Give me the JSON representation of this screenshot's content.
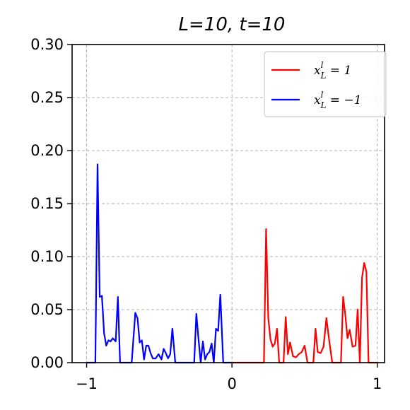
{
  "chart_data": {
    "type": "line",
    "title": "L=10, t=10",
    "xlabel": "",
    "ylabel": "",
    "xlim": [
      -1.1,
      1.05
    ],
    "ylim": [
      0,
      0.3
    ],
    "xticks": [
      -1,
      0,
      1
    ],
    "xtick_labels": [
      "−1",
      "0",
      "1"
    ],
    "yticks": [
      0.0,
      0.05,
      0.1,
      0.15,
      0.2,
      0.25,
      0.3
    ],
    "ytick_labels": [
      "0.00",
      "0.05",
      "0.10",
      "0.15",
      "0.20",
      "0.25",
      "0.30"
    ],
    "grid": true,
    "legend_position": "top-right",
    "series": [
      {
        "name": "x_L^l = 1",
        "legend_base": "x",
        "legend_sub": "L",
        "legend_sup": "l",
        "legend_rhs": " = 1",
        "color": "#ff0000",
        "x": [
          0.0,
          0.22,
          0.235,
          0.25,
          0.265,
          0.28,
          0.295,
          0.31,
          0.325,
          0.34,
          0.355,
          0.37,
          0.385,
          0.4,
          0.42,
          0.44,
          0.46,
          0.48,
          0.5,
          0.52,
          0.54,
          0.56,
          0.575,
          0.59,
          0.61,
          0.63,
          0.65,
          0.67,
          0.69,
          0.72,
          0.75,
          0.765,
          0.78,
          0.795,
          0.81,
          0.83,
          0.85,
          0.865,
          0.88,
          0.895,
          0.91,
          0.925,
          0.94,
          0.96,
          0.98,
          1.0
        ],
        "y": [
          0.0,
          0.0,
          0.126,
          0.042,
          0.022,
          0.015,
          0.018,
          0.032,
          0.0,
          0.0,
          0.0,
          0.043,
          0.008,
          0.019,
          0.006,
          0.005,
          0.008,
          0.01,
          0.016,
          0.0,
          0.0,
          0.0,
          0.032,
          0.01,
          0.009,
          0.015,
          0.042,
          0.02,
          0.0,
          0.0,
          0.0,
          0.062,
          0.045,
          0.023,
          0.031,
          0.015,
          0.016,
          0.05,
          0.0,
          0.08,
          0.094,
          0.086,
          0.0,
          0.0,
          0.0,
          0.0
        ]
      },
      {
        "name": "x_L^l = -1",
        "legend_base": "x",
        "legend_sub": "L",
        "legend_sup": "l",
        "legend_rhs": " = −1",
        "color": "#0000ff",
        "x": [
          -1.0,
          -0.94,
          -0.925,
          -0.91,
          -0.895,
          -0.88,
          -0.865,
          -0.85,
          -0.835,
          -0.82,
          -0.8,
          -0.785,
          -0.77,
          -0.75,
          -0.72,
          -0.69,
          -0.665,
          -0.65,
          -0.635,
          -0.62,
          -0.605,
          -0.59,
          -0.575,
          -0.56,
          -0.545,
          -0.525,
          -0.505,
          -0.485,
          -0.47,
          -0.455,
          -0.44,
          -0.425,
          -0.41,
          -0.39,
          -0.37,
          -0.35,
          -0.3,
          -0.26,
          -0.245,
          -0.23,
          -0.215,
          -0.2,
          -0.185,
          -0.17,
          -0.155,
          -0.14,
          -0.125,
          -0.11,
          -0.095,
          -0.08,
          -0.06,
          0.0
        ],
        "y": [
          0.0,
          0.0,
          0.187,
          0.062,
          0.063,
          0.028,
          0.016,
          0.021,
          0.02,
          0.023,
          0.02,
          0.062,
          0.0,
          0.0,
          0.0,
          0.0,
          0.047,
          0.042,
          0.019,
          0.021,
          0.003,
          0.016,
          0.016,
          0.009,
          0.004,
          0.004,
          0.008,
          0.003,
          0.013,
          0.009,
          0.004,
          0.008,
          0.032,
          0.0,
          0.0,
          0.0,
          0.0,
          0.0,
          0.046,
          0.022,
          0.0,
          0.02,
          0.003,
          0.008,
          0.01,
          0.018,
          0.0,
          0.032,
          0.03,
          0.064,
          0.0,
          0.0
        ]
      }
    ]
  }
}
